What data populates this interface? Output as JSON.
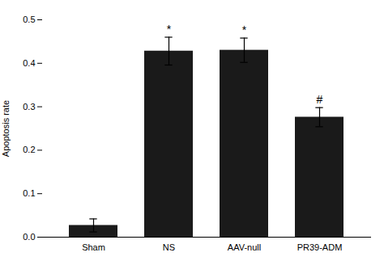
{
  "chart_data": {
    "type": "bar",
    "categories": [
      "Sham",
      "NS",
      "AAV-null",
      "PR39-ADM"
    ],
    "values": [
      0.027,
      0.428,
      0.43,
      0.276
    ],
    "errors": [
      0.015,
      0.032,
      0.028,
      0.022
    ],
    "significance_labels": [
      null,
      "*",
      "*",
      "#"
    ],
    "color": "#1a1a1a",
    "ylabel": "Apoptosis rate",
    "ylim": [
      0,
      0.5
    ],
    "yticks": [
      {
        "value": 0.0,
        "label": "0.0"
      },
      0.1,
      0.2,
      0.3,
      0.4,
      0.5
    ],
    "grid": false
  }
}
